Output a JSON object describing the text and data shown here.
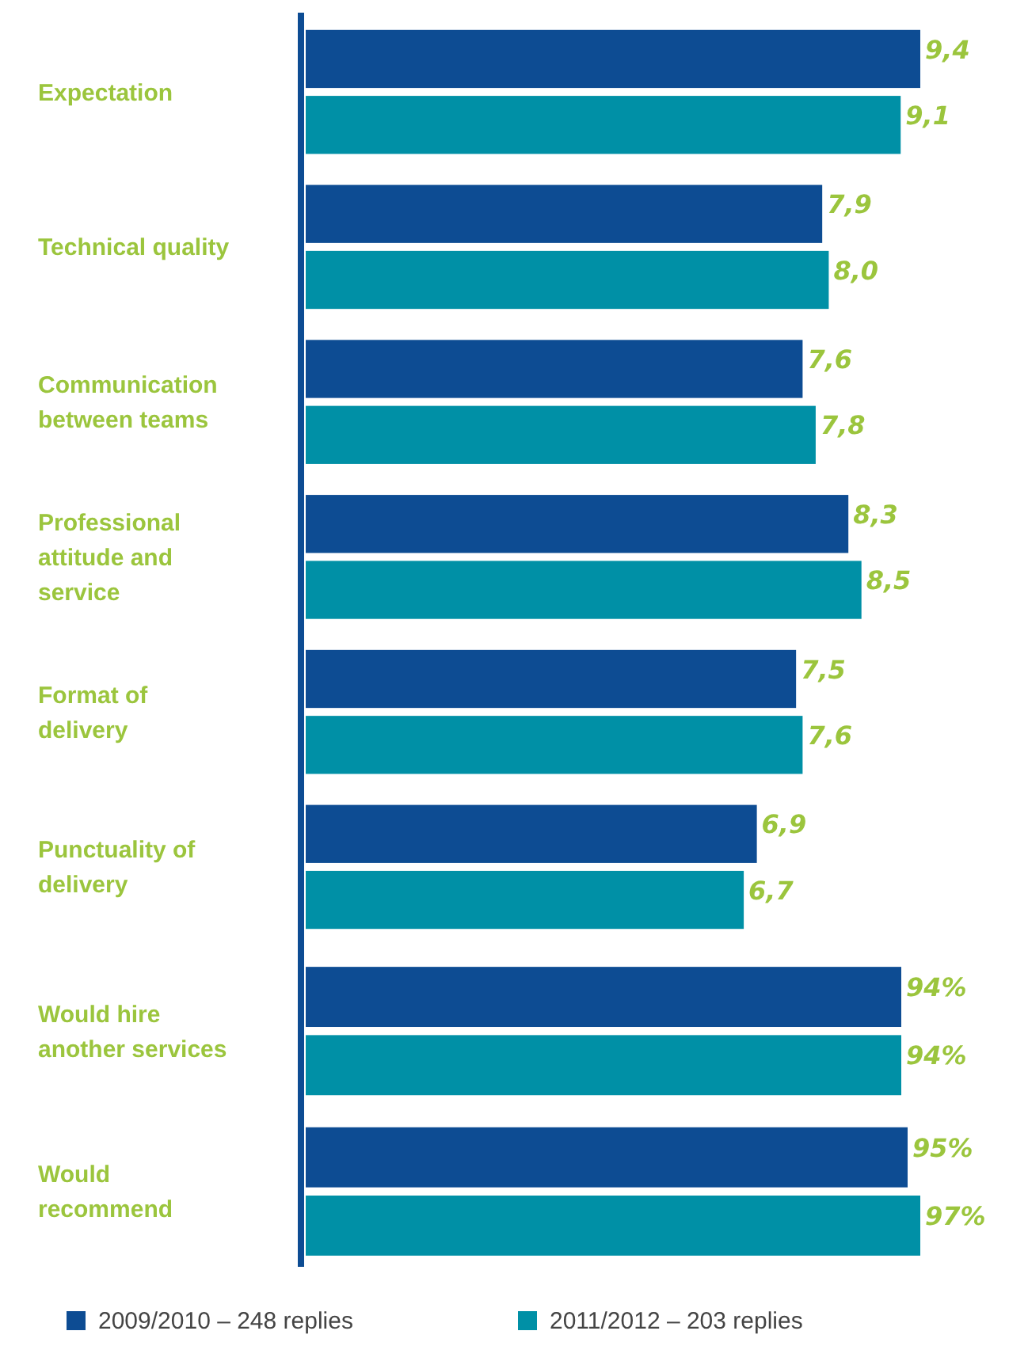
{
  "chart_data": [
    {
      "type": "bar",
      "orientation": "horizontal",
      "categories": [
        "Expectation",
        "Technical quality",
        "Communication between teams",
        "Professional attitude and service",
        "Format of delivery",
        "Punctuality of delivery"
      ],
      "series": [
        {
          "color": "#0d4c93",
          "values": [
            9.4,
            7.9,
            7.6,
            8.3,
            7.5,
            6.9
          ],
          "value_labels": [
            "9,4",
            "7,9",
            "7,6",
            "8,3",
            "7,5",
            "6,9"
          ]
        },
        {
          "color": "#0090a6",
          "values": [
            9.1,
            8.0,
            7.8,
            8.5,
            7.6,
            6.7
          ],
          "value_labels": [
            "9,1",
            "8,0",
            "7,8",
            "8,5",
            "7,6",
            "6,7"
          ]
        }
      ]
    },
    {
      "type": "bar",
      "orientation": "horizontal",
      "categories": [
        "Would hire another services",
        "Would recommend"
      ],
      "series": [
        {
          "name": "2009/2010 – 248 replies",
          "color": "#0d4c93",
          "values": [
            94,
            95
          ],
          "value_labels": [
            "94%",
            "95%"
          ]
        },
        {
          "name": "2011/2012 – 203 replies",
          "color": "#0090a6",
          "values": [
            94,
            97
          ],
          "value_labels": [
            "94%",
            "97%"
          ]
        }
      ],
      "legend": "bottom"
    }
  ]
}
